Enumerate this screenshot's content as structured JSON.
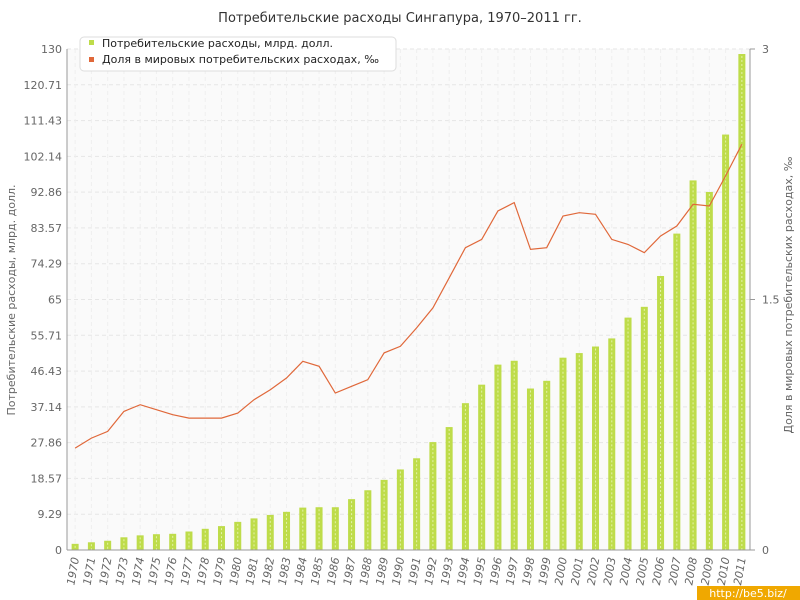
{
  "chart_data": {
    "type": "bar",
    "title": "Потребительские расходы Сингапура, 1970–2011 гг.",
    "ylabel": "Потребительские расходы, млрд. долл.",
    "y2label": "Доля в мировых потребительских расходах, ‰",
    "ylim": [
      0,
      130
    ],
    "y2lim": [
      0,
      3
    ],
    "y_ticks": [
      "0",
      "9.29",
      "18.57",
      "27.86",
      "37.14",
      "46.43",
      "55.71",
      "65",
      "74.29",
      "83.57",
      "92.86",
      "102.14",
      "111.43",
      "120.71",
      "130"
    ],
    "y2_ticks": [
      "0",
      "1.5",
      "3"
    ],
    "grid": true,
    "legend_position": "top-left",
    "colors": {
      "bars": "#bedc4a",
      "line": "#e0683a",
      "grid": "#e6e6e6"
    },
    "categories": [
      "1970",
      "1971",
      "1972",
      "1973",
      "1974",
      "1975",
      "1976",
      "1977",
      "1978",
      "1979",
      "1980",
      "1981",
      "1982",
      "1983",
      "1984",
      "1985",
      "1986",
      "1987",
      "1988",
      "1989",
      "1990",
      "1991",
      "1992",
      "1993",
      "1994",
      "1995",
      "1996",
      "1997",
      "1998",
      "1999",
      "2000",
      "2001",
      "2002",
      "2003",
      "2004",
      "2005",
      "2006",
      "2007",
      "2008",
      "2009",
      "2010",
      "2011"
    ],
    "series": [
      {
        "name": "Потребительские расходы, млрд. долл.",
        "kind": "bar",
        "axis": "left",
        "values": [
          1.6,
          2.0,
          2.4,
          3.3,
          3.8,
          4.1,
          4.2,
          4.8,
          5.5,
          6.2,
          7.3,
          8.2,
          9.1,
          9.9,
          11.0,
          11.1,
          11.1,
          13.2,
          15.5,
          18.2,
          20.9,
          23.8,
          28.0,
          31.9,
          38.1,
          42.9,
          48.1,
          49.1,
          41.9,
          43.9,
          49.9,
          51.1,
          52.8,
          54.9,
          60.3,
          63.1,
          71.1,
          82.1,
          95.9,
          92.9,
          107.8,
          128.7
        ]
      },
      {
        "name": "Доля в мировых потребительских расходах, ‰",
        "kind": "line",
        "axis": "right",
        "values": [
          0.61,
          0.67,
          0.71,
          0.83,
          0.87,
          0.84,
          0.81,
          0.79,
          0.79,
          0.79,
          0.82,
          0.9,
          0.96,
          1.03,
          1.13,
          1.1,
          0.94,
          0.98,
          1.02,
          1.18,
          1.22,
          1.33,
          1.45,
          1.63,
          1.81,
          1.86,
          2.03,
          2.08,
          1.8,
          1.81,
          2.0,
          2.02,
          2.01,
          1.86,
          1.83,
          1.78,
          1.88,
          1.94,
          2.07,
          2.06,
          2.24,
          2.43
        ]
      }
    ]
  },
  "watermark": "http://be5.biz/"
}
